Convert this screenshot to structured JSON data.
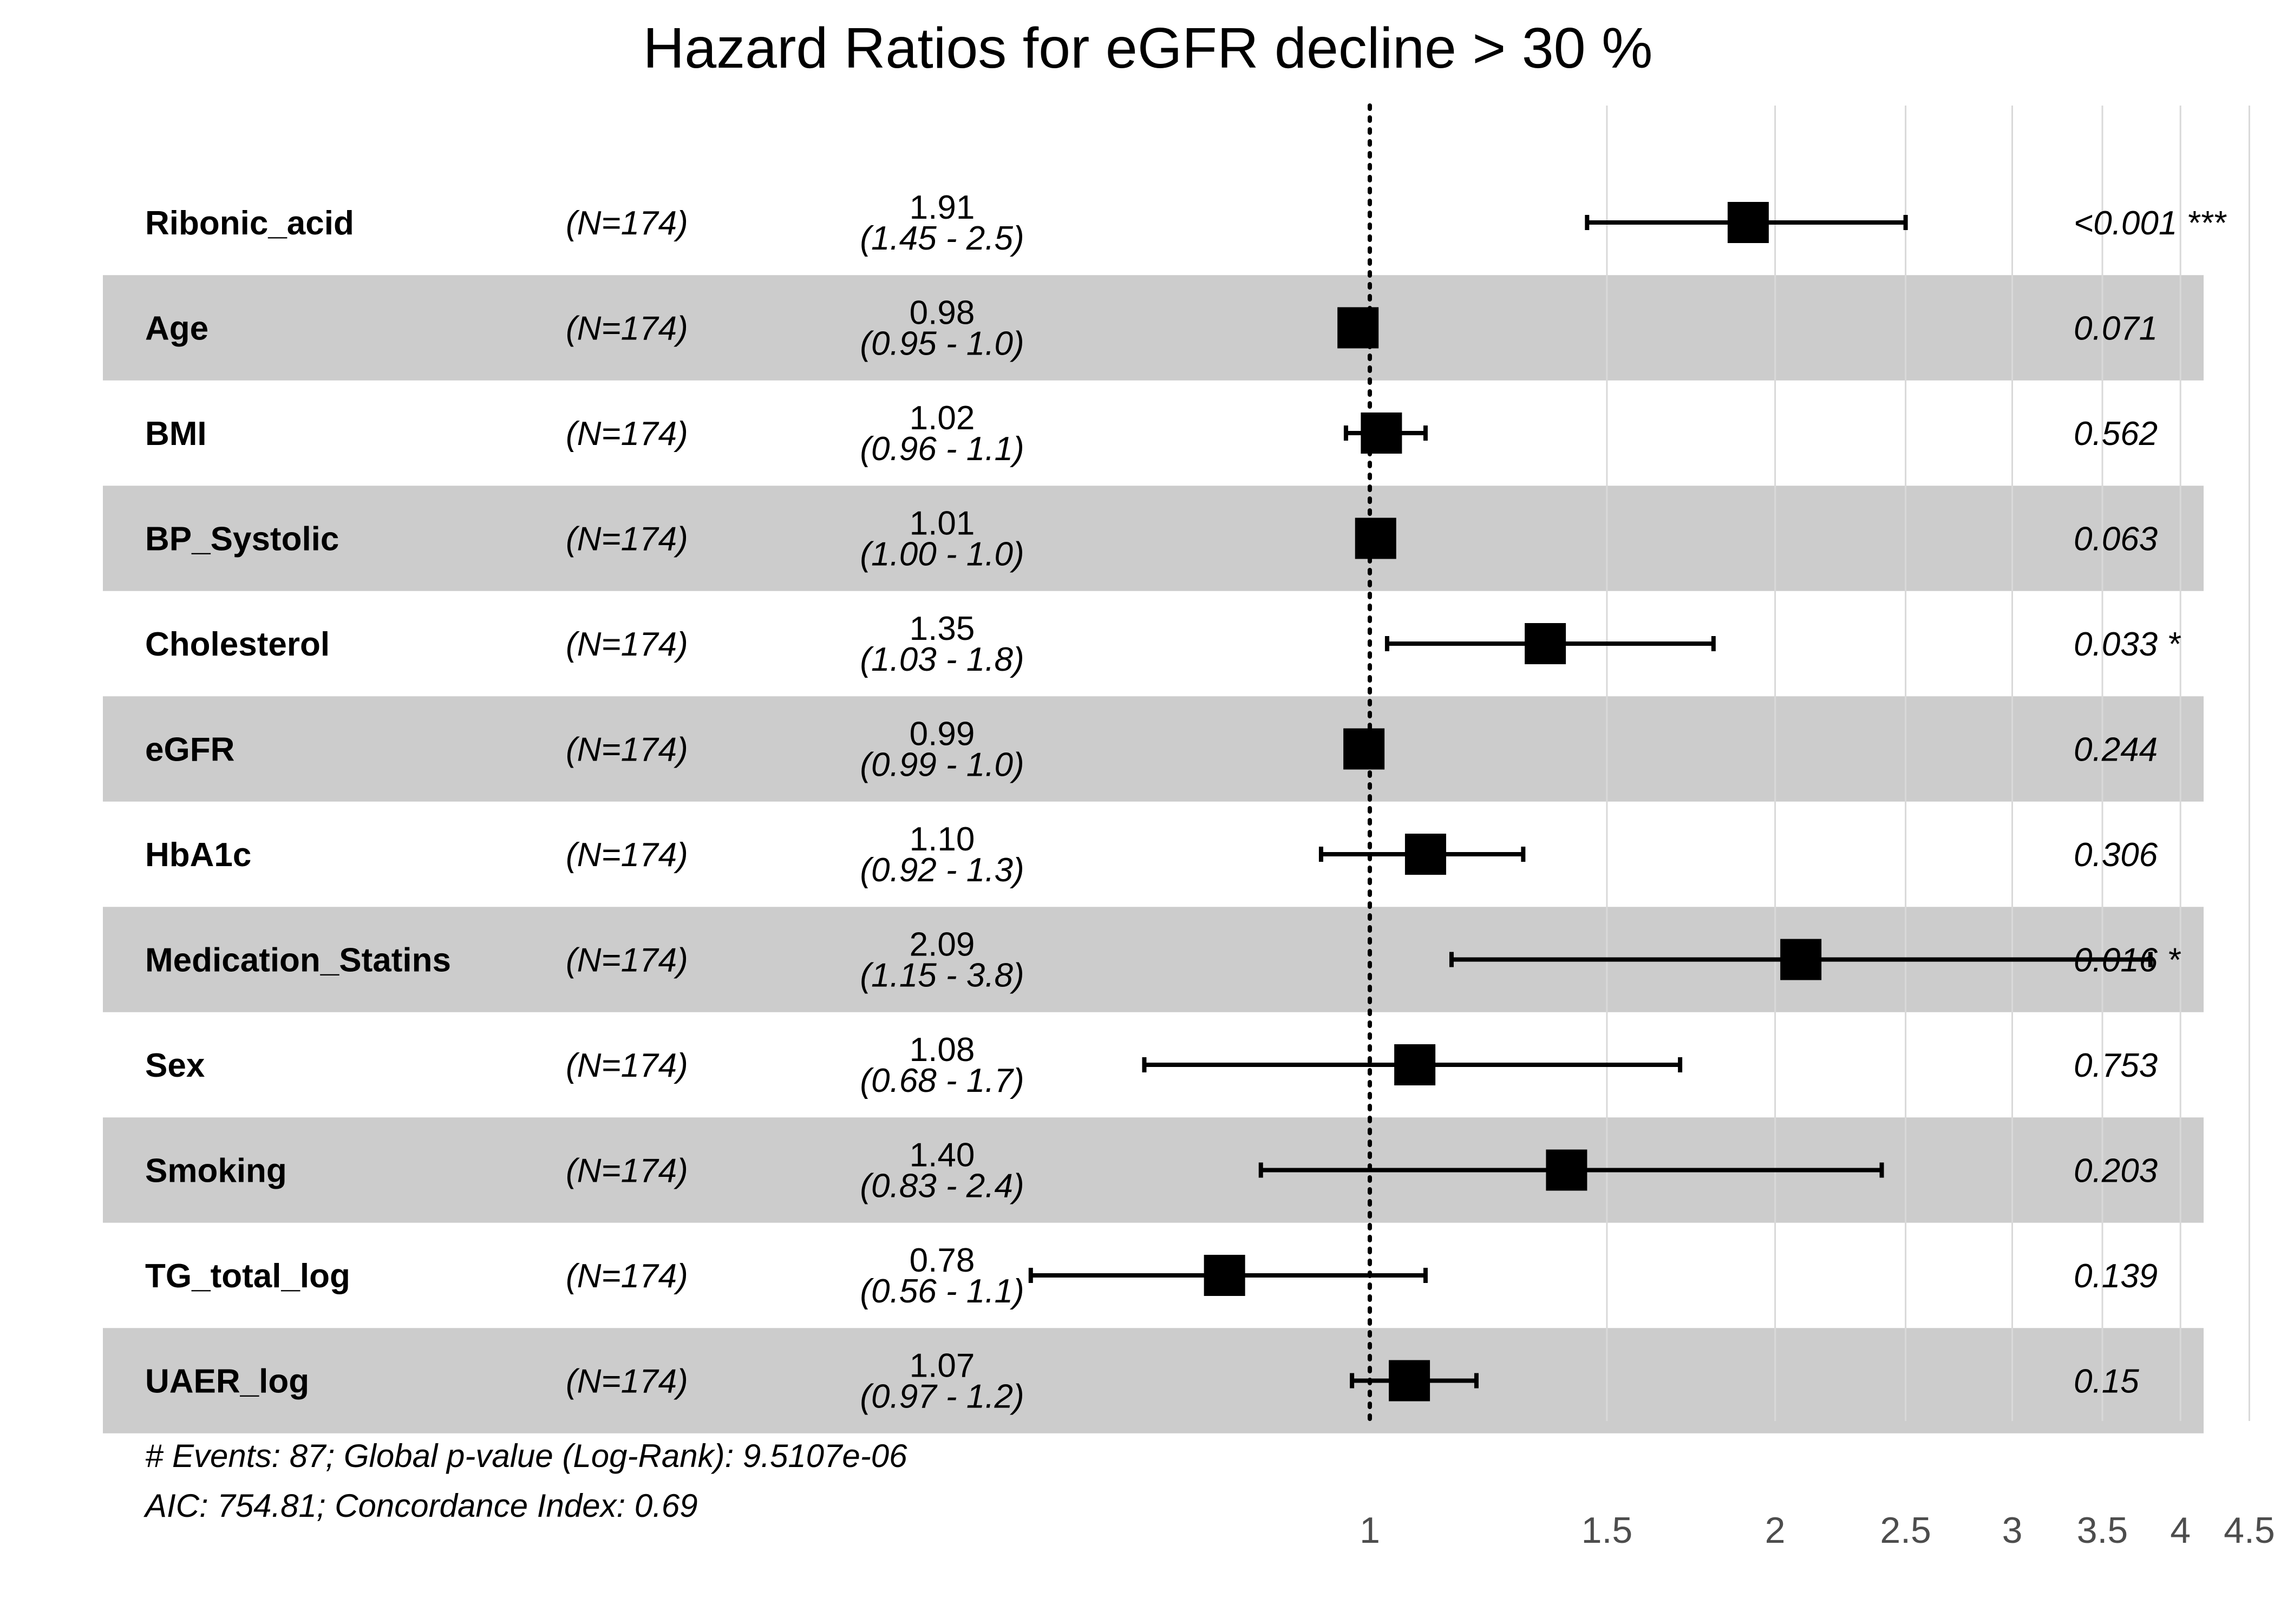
{
  "chart_data": {
    "type": "forest",
    "title": "Hazard Ratios for eGFR decline > 30 %",
    "scale": "log",
    "reference_line": 1,
    "xlim": [
      0.52,
      4.8
    ],
    "xticks": [
      {
        "value": 1,
        "label": "1"
      },
      {
        "value": 1.5,
        "label": "1.5"
      },
      {
        "value": 2,
        "label": "2"
      },
      {
        "value": 2.5,
        "label": "2.5"
      },
      {
        "value": 3,
        "label": "3"
      },
      {
        "value": 3.5,
        "label": "3.5"
      },
      {
        "value": 4,
        "label": "4"
      },
      {
        "value": 4.5,
        "label": "4.5"
      }
    ],
    "rows": [
      {
        "variable": "Ribonic_acid",
        "n": "(N=174)",
        "hr": 1.91,
        "lower": 1.45,
        "upper": 2.5,
        "hr_text": "1.91",
        "ci_text": "(1.45 - 2.5)",
        "p_text": "<0.001 ***",
        "shaded": false
      },
      {
        "variable": "Age",
        "n": "(N=174)",
        "hr": 0.98,
        "lower": 0.95,
        "upper": 1.0,
        "hr_text": "0.98",
        "ci_text": "(0.95 - 1.0)",
        "p_text": "0.071",
        "shaded": true
      },
      {
        "variable": "BMI",
        "n": "(N=174)",
        "hr": 1.02,
        "lower": 0.96,
        "upper": 1.1,
        "hr_text": "1.02",
        "ci_text": "(0.96 - 1.1)",
        "p_text": "0.562",
        "shaded": false
      },
      {
        "variable": "BP_Systolic",
        "n": "(N=174)",
        "hr": 1.01,
        "lower": 1.0,
        "upper": 1.0,
        "hr_text": "1.01",
        "ci_text": "(1.00 - 1.0)",
        "p_text": "0.063",
        "shaded": true
      },
      {
        "variable": "Cholesterol",
        "n": "(N=174)",
        "hr": 1.35,
        "lower": 1.03,
        "upper": 1.8,
        "hr_text": "1.35",
        "ci_text": "(1.03 - 1.8)",
        "p_text": "0.033 *",
        "shaded": false
      },
      {
        "variable": "eGFR",
        "n": "(N=174)",
        "hr": 0.99,
        "lower": 0.99,
        "upper": 1.0,
        "hr_text": "0.99",
        "ci_text": "(0.99 - 1.0)",
        "p_text": "0.244",
        "shaded": true
      },
      {
        "variable": "HbA1c",
        "n": "(N=174)",
        "hr": 1.1,
        "lower": 0.92,
        "upper": 1.3,
        "hr_text": "1.10",
        "ci_text": "(0.92 - 1.3)",
        "p_text": "0.306",
        "shaded": false
      },
      {
        "variable": "Medication_Statins",
        "n": "(N=174)",
        "hr": 2.09,
        "lower": 1.15,
        "upper": 3.8,
        "hr_text": "2.09",
        "ci_text": "(1.15 - 3.8)",
        "p_text": "0.016 *",
        "shaded": true
      },
      {
        "variable": "Sex",
        "n": "(N=174)",
        "hr": 1.08,
        "lower": 0.68,
        "upper": 1.7,
        "hr_text": "1.08",
        "ci_text": "(0.68 - 1.7)",
        "p_text": "0.753",
        "shaded": false
      },
      {
        "variable": "Smoking",
        "n": "(N=174)",
        "hr": 1.4,
        "lower": 0.83,
        "upper": 2.4,
        "hr_text": "1.40",
        "ci_text": "(0.83 - 2.4)",
        "p_text": "0.203",
        "shaded": true
      },
      {
        "variable": "TG_total_log",
        "n": "(N=174)",
        "hr": 0.78,
        "lower": 0.56,
        "upper": 1.1,
        "hr_text": "0.78",
        "ci_text": "(0.56 - 1.1)",
        "p_text": "0.139",
        "shaded": false
      },
      {
        "variable": "UAER_log",
        "n": "(N=174)",
        "hr": 1.07,
        "lower": 0.97,
        "upper": 1.2,
        "hr_text": "1.07",
        "ci_text": "(0.97 - 1.2)",
        "p_text": "0.15",
        "shaded": true
      }
    ],
    "footer": {
      "line1": "# Events: 87; Global p-value (Log-Rank): 9.5107e-06",
      "line2": "AIC: 754.81; Concordance Index: 0.69"
    },
    "colors": {
      "row_shade": "#cccccc",
      "marker": "#000000",
      "gridline": "#d9d9d9",
      "tick_text": "#4d4d4d"
    }
  }
}
